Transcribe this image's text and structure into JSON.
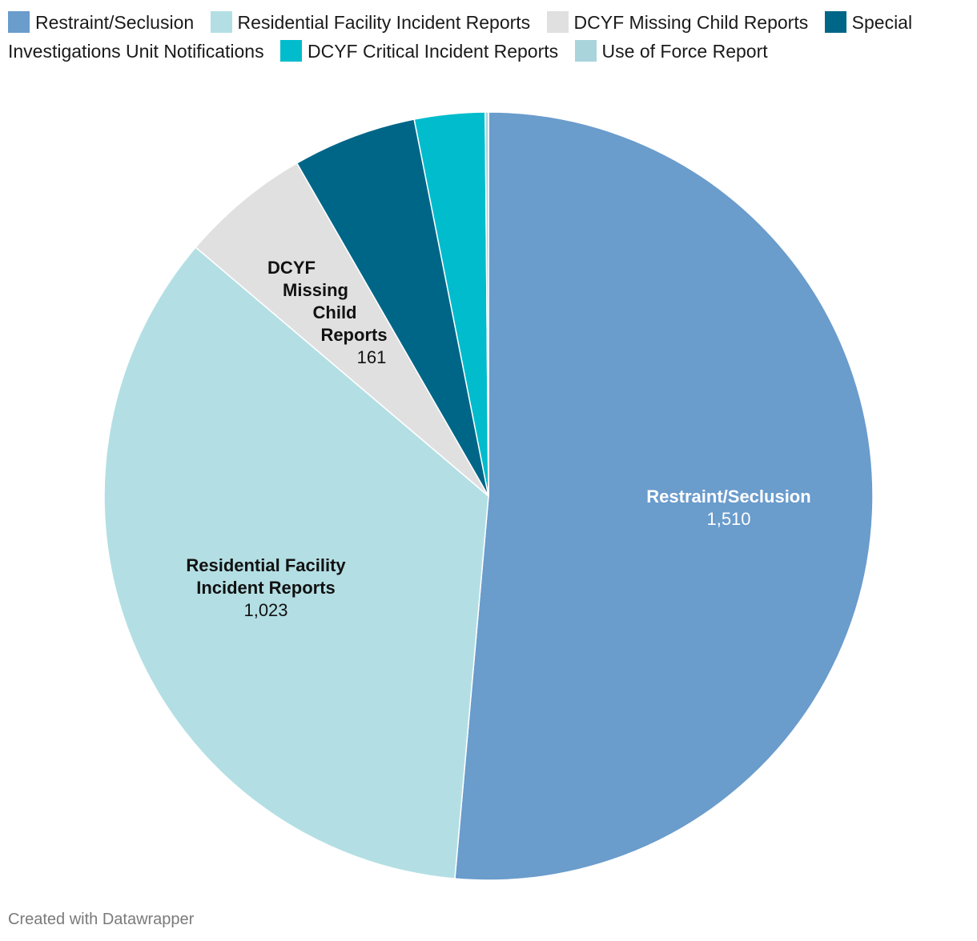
{
  "chart_data": {
    "type": "pie",
    "legend_position": "top",
    "slices": [
      {
        "name": "Restraint/Seclusion",
        "value": 1510,
        "value_label": "1,510",
        "color": "#6a9ccc",
        "label_lines": [
          "Restraint/Seclusion"
        ],
        "label_color": "#ffffff",
        "show_label": true
      },
      {
        "name": "Residential Facility Incident Reports",
        "value": 1023,
        "value_label": "1,023",
        "color": "#b3dfe4",
        "label_lines": [
          "Residential Facility",
          "Incident Reports"
        ],
        "label_color": "#111111",
        "show_label": true
      },
      {
        "name": "DCYF Missing Child Reports",
        "value": 161,
        "value_label": "161",
        "color": "#e0e0e0",
        "label_lines": [
          "DCYF",
          "Missing",
          "Child",
          "Reports"
        ],
        "label_color": "#111111",
        "show_label": true
      },
      {
        "name": "Special Investigations Unit Notifications",
        "value": 153,
        "value_label": "",
        "color": "#006688",
        "label_lines": [],
        "label_color": "#ffffff",
        "show_label": false
      },
      {
        "name": "DCYF Critical Incident Reports",
        "value": 87,
        "value_label": "",
        "color": "#00bccc",
        "label_lines": [],
        "label_color": "#ffffff",
        "show_label": false
      },
      {
        "name": "Use of Force Report",
        "value": 4,
        "value_label": "",
        "color": "#a9d4dc",
        "label_lines": [],
        "label_color": "#111111",
        "show_label": false
      }
    ]
  },
  "footer": {
    "credit": "Created with Datawrapper"
  }
}
